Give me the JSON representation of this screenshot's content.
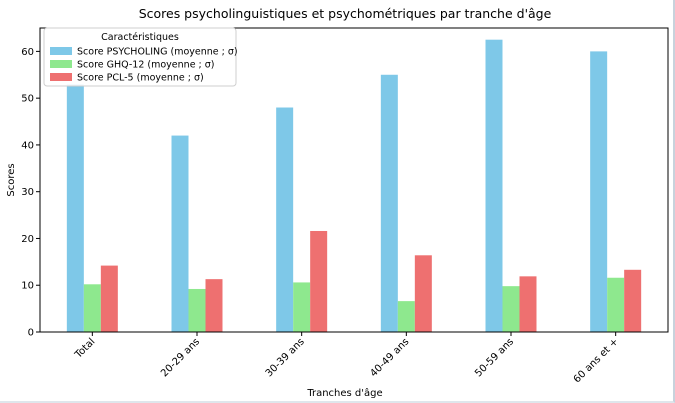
{
  "chart_data": {
    "type": "bar",
    "title": "Scores psycholinguistiques et psychométriques par tranche d'âge",
    "xlabel": "Tranches d'âge",
    "ylabel": "Scores",
    "ylim": [
      0,
      65
    ],
    "yticks": [
      0,
      10,
      20,
      30,
      40,
      50,
      60
    ],
    "grid": false,
    "legend": {
      "title": "Caractéristiques",
      "placement": "top-left"
    },
    "categories": [
      "Total",
      "20-29 ans",
      "30-39 ans",
      "40-49 ans",
      "50-59 ans",
      "60 ans et +"
    ],
    "series": [
      {
        "name": "Score PSYCHOLING (moyenne ; σ)",
        "color": "#7ec8e8",
        "values": [
          53,
          42,
          48,
          55,
          62.5,
          60
        ]
      },
      {
        "name": "Score GHQ-12 (moyenne ; σ)",
        "color": "#8ee88e",
        "values": [
          10.2,
          9.2,
          10.6,
          6.6,
          9.8,
          11.6
        ]
      },
      {
        "name": "Score PCL-5 (moyenne ; σ)",
        "color": "#ee7070",
        "values": [
          14.2,
          11.3,
          21.6,
          16.4,
          11.9,
          13.3
        ]
      }
    ]
  }
}
